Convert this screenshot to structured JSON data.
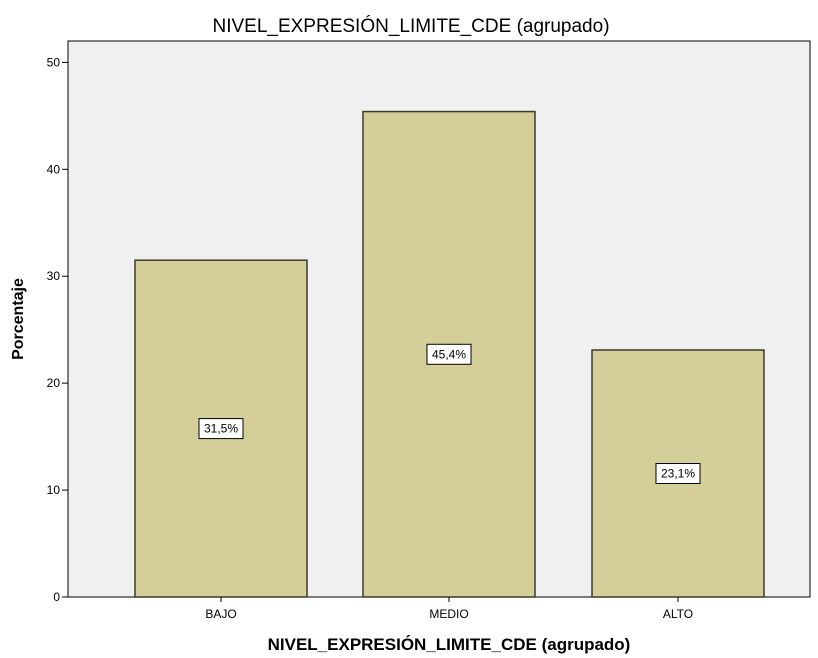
{
  "chart_data": {
    "type": "bar",
    "title": "NIVEL_EXPRESIÓN_LIMITE_CDE (agrupado)",
    "xlabel": "NIVEL_EXPRESIÓN_LIMITE_CDE (agrupado)",
    "ylabel": "Porcentaje",
    "categories": [
      "BAJO",
      "MEDIO",
      "ALTO"
    ],
    "values": [
      31.5,
      45.4,
      23.1
    ],
    "data_labels": [
      "31,5%",
      "45,4%",
      "23,1%"
    ],
    "ylim": [
      0,
      52
    ],
    "yticks": [
      0,
      10,
      20,
      30,
      40,
      50
    ],
    "grid": false,
    "legend": "none",
    "colors": {
      "bar_fill": "#D4CF99",
      "bar_stroke": "#3A3A2A",
      "plot_background": "#F0F0F0",
      "axis": "#000000"
    }
  }
}
